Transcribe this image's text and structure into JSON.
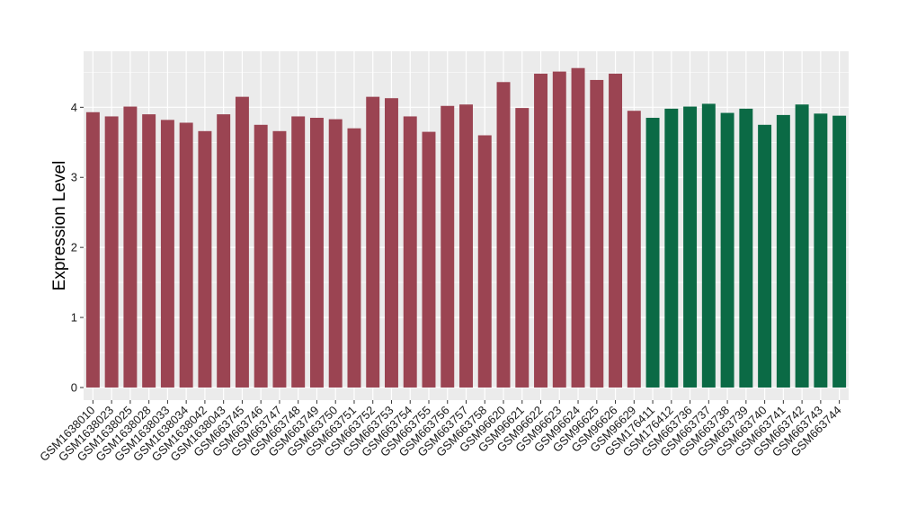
{
  "chart_data": {
    "type": "bar",
    "title": "",
    "xlabel": "",
    "ylabel": "Expression Level",
    "ylim": [
      -0.18,
      4.8
    ],
    "yticks": [
      0,
      1,
      2,
      3,
      4
    ],
    "grid": true,
    "legend": "none",
    "colors": {
      "group1": "#9b4452",
      "group2": "#0b6a45",
      "panel": "#ebebeb",
      "gridline": "#ffffff"
    },
    "categories": [
      "GSM1638010",
      "GSM1638023",
      "GSM1638025",
      "GSM1638028",
      "GSM1638033",
      "GSM1638034",
      "GSM1638042",
      "GSM1638043",
      "GSM663745",
      "GSM663746",
      "GSM663747",
      "GSM663748",
      "GSM663749",
      "GSM663750",
      "GSM663751",
      "GSM663752",
      "GSM663753",
      "GSM663754",
      "GSM663755",
      "GSM663756",
      "GSM663757",
      "GSM663758",
      "GSM96620",
      "GSM96621",
      "GSM96622",
      "GSM96623",
      "GSM96624",
      "GSM96625",
      "GSM96626",
      "GSM96629",
      "GSM176411",
      "GSM176412",
      "GSM663736",
      "GSM663737",
      "GSM663738",
      "GSM663739",
      "GSM663740",
      "GSM663741",
      "GSM663742",
      "GSM663743",
      "GSM663744"
    ],
    "values": [
      3.93,
      3.87,
      4.01,
      3.9,
      3.82,
      3.78,
      3.66,
      3.9,
      4.15,
      3.75,
      3.66,
      3.87,
      3.85,
      3.83,
      3.7,
      4.15,
      4.13,
      3.87,
      3.65,
      4.02,
      4.04,
      3.6,
      4.36,
      3.99,
      4.48,
      4.51,
      4.56,
      4.39,
      4.48,
      3.95,
      3.85,
      3.98,
      4.01,
      4.05,
      3.92,
      3.98,
      3.75,
      3.89,
      4.04,
      3.91,
      3.88
    ],
    "groups": [
      1,
      1,
      1,
      1,
      1,
      1,
      1,
      1,
      1,
      1,
      1,
      1,
      1,
      1,
      1,
      1,
      1,
      1,
      1,
      1,
      1,
      1,
      1,
      1,
      1,
      1,
      1,
      1,
      1,
      1,
      2,
      2,
      2,
      2,
      2,
      2,
      2,
      2,
      2,
      2,
      2
    ]
  }
}
